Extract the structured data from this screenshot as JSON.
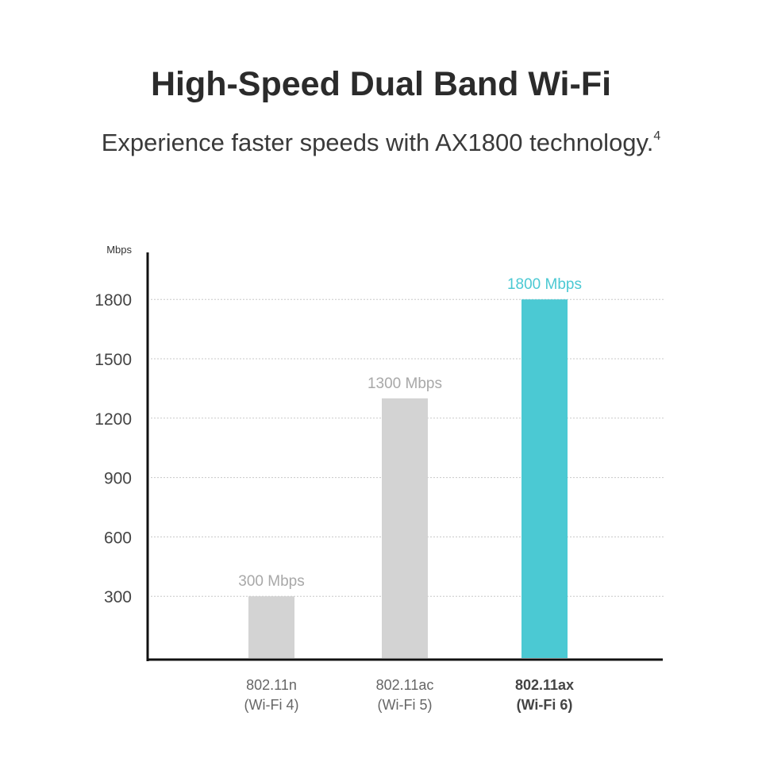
{
  "header": {
    "title": "High-Speed Dual Band Wi-Fi",
    "subtitle": "Experience faster speeds with AX1800 technology.",
    "footnote": "4"
  },
  "chart_data": {
    "type": "bar",
    "title": "",
    "ylabel": "Mbps",
    "xlabel": "",
    "ylim": [
      0,
      1800
    ],
    "yticks": [
      300,
      600,
      900,
      1200,
      1500,
      1800
    ],
    "grid": "horizontal dotted",
    "categories": [
      {
        "line1": "802.11n",
        "line2": "(Wi-Fi 4)",
        "bold": false
      },
      {
        "line1": "802.11ac",
        "line2": "(Wi-Fi 5)",
        "bold": false
      },
      {
        "line1": "802.11ax",
        "line2": "(Wi-Fi 6)",
        "bold": true
      }
    ],
    "values": [
      300,
      1300,
      1800
    ],
    "data_labels": [
      "300 Mbps",
      "1300 Mbps",
      "1800 Mbps"
    ],
    "colors": [
      "#d3d3d3",
      "#d3d3d3",
      "#4bc9d3"
    ],
    "label_colors": [
      "#a8a8a8",
      "#a8a8a8",
      "#4bc9d3"
    ]
  }
}
